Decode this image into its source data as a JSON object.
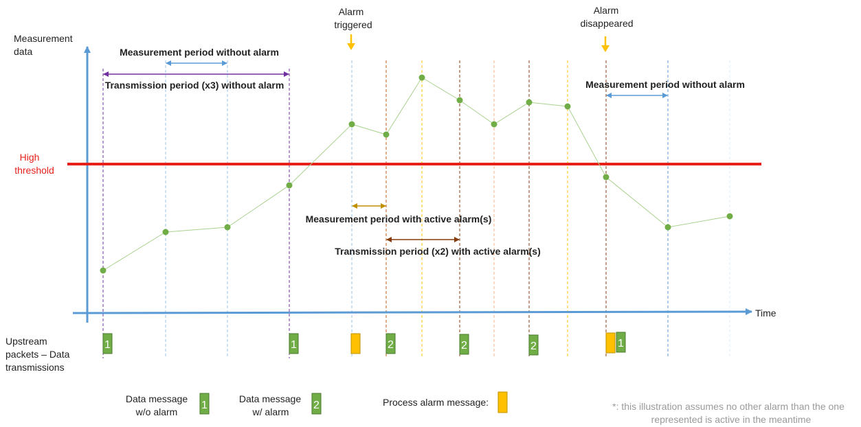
{
  "axes": {
    "y_label_line1": "Measurement",
    "y_label_line2": "data",
    "x_label": "Time"
  },
  "threshold": {
    "label_line1": "High",
    "label_line2": "threshold",
    "color": "#e8201a"
  },
  "events": {
    "alarm_triggered_line1": "Alarm",
    "alarm_triggered_line2": "triggered",
    "alarm_disappeared_line1": "Alarm",
    "alarm_disappeared_line2": "disappeared"
  },
  "periods": {
    "measurement_without_alarm": "Measurement period without alarm",
    "transmission_without_alarm": "Transmission period (x3) without alarm",
    "measurement_with_alarm": "Measurement period with active alarm(s)",
    "transmission_with_alarm": "Transmission period (x2) with active alarm(s)",
    "measurement_without_alarm_after": "Measurement period without alarm"
  },
  "upstream": {
    "label_line1": "Upstream",
    "label_line2": "packets – Data",
    "label_line3": "transmissions"
  },
  "packets": [
    {
      "type": "data",
      "number": "1"
    },
    {
      "type": "data",
      "number": "1"
    },
    {
      "type": "alarm",
      "number": ""
    },
    {
      "type": "data",
      "number": "2"
    },
    {
      "type": "data",
      "number": "2"
    },
    {
      "type": "data",
      "number": "2"
    },
    {
      "type": "alarm",
      "number": ""
    },
    {
      "type": "data",
      "number": "1"
    }
  ],
  "legend": {
    "data_wo_alarm_line1": "Data message",
    "data_wo_alarm_line2": "w/o alarm",
    "data_wo_alarm_number": "1",
    "data_w_alarm_line1": "Data message",
    "data_w_alarm_line2": "w/ alarm",
    "data_w_alarm_number": "2",
    "process_alarm": "Process alarm message:"
  },
  "note": {
    "line1": "*: this illustration assumes no other alarm than the one",
    "line2": "represented is active in the meantime"
  },
  "colors": {
    "axis": "#5b9bd5",
    "data_line": "#a9d18e",
    "data_point": "#70ad47",
    "packet_green": "#70ad47",
    "alarm_yellow": "#ffc000",
    "purple_period": "#7030a0",
    "blue_period": "#5b9bd5",
    "gold_period": "#bf9000",
    "brown_period": "#843c0c"
  }
}
